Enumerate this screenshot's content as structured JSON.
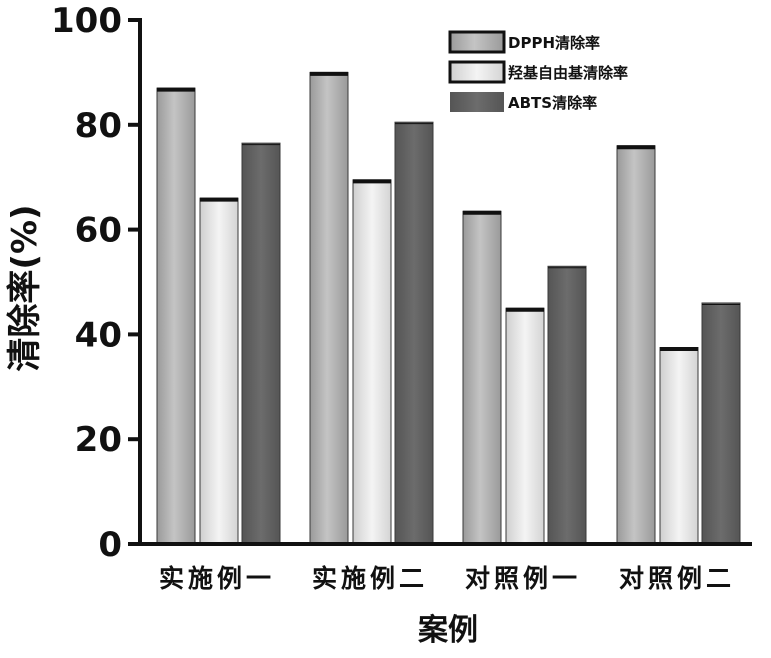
{
  "chart_data": {
    "type": "bar",
    "xlabel": "案例",
    "ylabel": "清除率(%)",
    "ylim": [
      0,
      100
    ],
    "yticks": [
      0,
      20,
      40,
      60,
      80,
      100
    ],
    "categories": [
      "实施例一",
      "实施例二",
      "对照例一",
      "对照例二"
    ],
    "series": [
      {
        "name": "DPPH清除率",
        "values": [
          87,
          90,
          63.5,
          76
        ]
      },
      {
        "name": "羟基自由基清除率",
        "values": [
          66,
          69.5,
          45,
          37.5
        ]
      },
      {
        "name": "ABTS清除率",
        "values": [
          76.5,
          80.5,
          53,
          46
        ]
      }
    ],
    "legend_position": "top-right",
    "grid": false,
    "colors": {
      "DPPH清除率": "#a6a6a6",
      "羟基自由基清除率": "#dedede",
      "ABTS清除率": "#5e5e5e"
    }
  }
}
